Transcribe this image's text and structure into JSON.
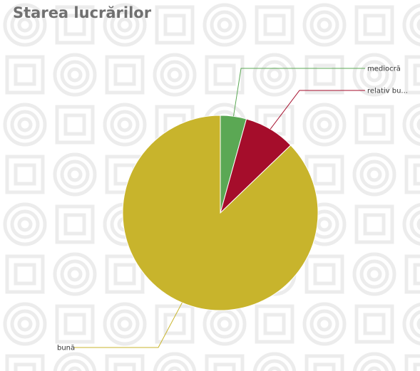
{
  "title": "Starea lucrărilor",
  "chart_data": {
    "type": "pie",
    "title": "Starea lucrărilor",
    "slices": [
      {
        "label": "mediocră",
        "value": 4.3,
        "color": "#5ba854"
      },
      {
        "label": "relativ bu...",
        "value": 8.5,
        "color": "#a50d2b"
      },
      {
        "label": "bună",
        "value": 87.2,
        "color": "#c8b42c"
      }
    ],
    "start_angle_deg": 0,
    "direction": "clockwise",
    "legend": "none",
    "labels": "leader-lines"
  },
  "colors": {
    "title": "#707070",
    "pattern": "#ececec"
  }
}
